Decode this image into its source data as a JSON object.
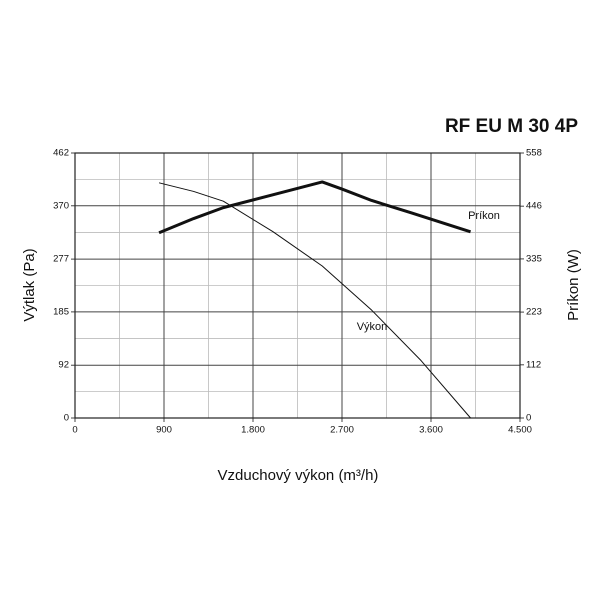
{
  "chart_data": {
    "type": "line",
    "title": "RF EU M 30 4P",
    "x_label": "Vzduchový výkon (m³/h)",
    "y_label": "Výtlak (Pa)",
    "y2_label": "Príkon (W)",
    "xlim": [
      0,
      4500
    ],
    "xticks": [
      0,
      900,
      {
        "value": 1800,
        "label": "1.800"
      },
      {
        "value": 2700,
        "label": "2.700"
      },
      {
        "value": 3600,
        "label": "3.600"
      },
      {
        "value": 4500,
        "label": "4.500"
      }
    ],
    "ylim": [
      0,
      462
    ],
    "yticks": [
      0,
      92,
      185,
      277,
      370,
      462
    ],
    "y2lim": [
      0,
      558
    ],
    "y2ticks": [
      0,
      112,
      223,
      335,
      446,
      558
    ],
    "grid": true,
    "series": [
      {
        "name": "Výkon",
        "color": "#111111",
        "width": 1,
        "x": [
          850,
          1200,
          1500,
          2000,
          2500,
          3000,
          3500,
          4000
        ],
        "values": [
          410,
          395,
          378,
          325,
          265,
          188,
          100,
          0
        ]
      },
      {
        "name": "Príkon",
        "color": "#111111",
        "width": 3,
        "axis": "y2",
        "x": [
          850,
          1200,
          1500,
          2000,
          2500,
          2700,
          3000,
          3400,
          4000
        ],
        "values": [
          390,
          420,
          443,
          470,
          497,
          482,
          458,
          432,
          392
        ]
      }
    ],
    "annotations": [
      {
        "text": "Príkon",
        "series": 1
      },
      {
        "text": "Výkon",
        "series": 0
      }
    ]
  }
}
